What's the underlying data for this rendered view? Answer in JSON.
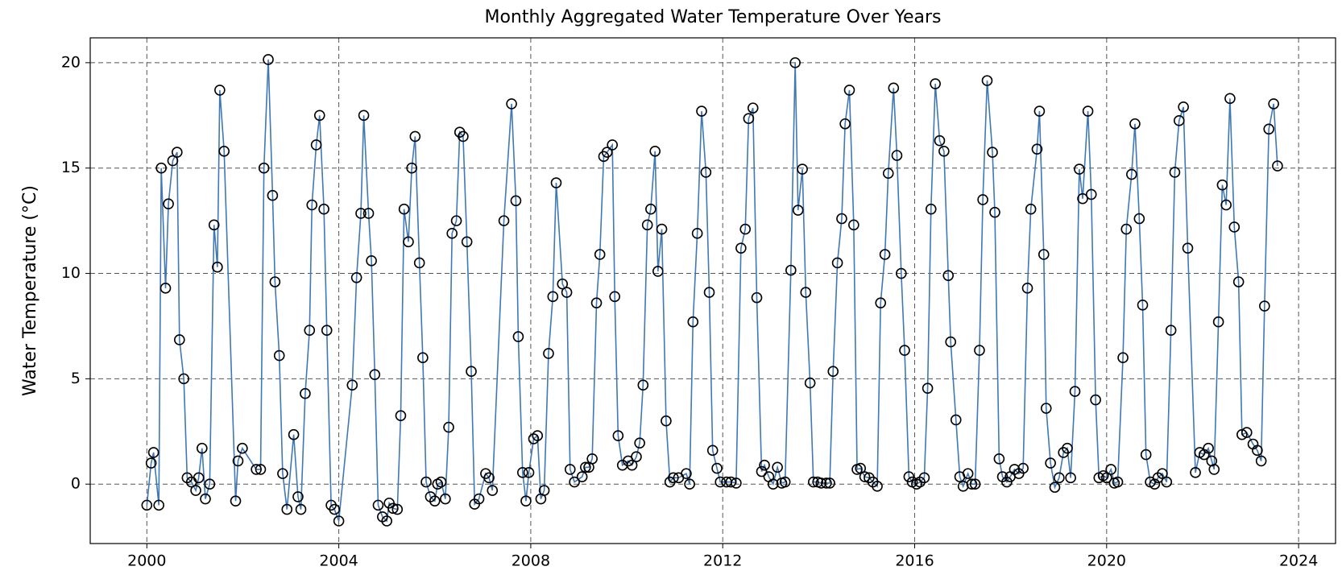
{
  "chart_data": {
    "type": "line",
    "title": "Monthly Aggregated Water Temperature Over Years",
    "y_label": "Water Temperature (°C)",
    "color": "#3f78b4",
    "marker_color": "#000000",
    "grid": true,
    "xlim": [
      1998.82,
      2024.77
    ],
    "ylim": [
      -2.82,
      21.18
    ],
    "xticks": [
      2000,
      2004,
      2008,
      2012,
      2016,
      2020,
      2024
    ],
    "yticks": [
      0,
      5,
      10,
      15,
      20
    ],
    "x": [
      2000.0,
      2000.09,
      2000.14,
      2000.25,
      2000.3,
      2000.39,
      2000.45,
      2000.54,
      2000.63,
      2000.68,
      2000.77,
      2000.84,
      2000.93,
      2001.02,
      2001.08,
      2001.15,
      2001.22,
      2001.31,
      2001.4,
      2001.47,
      2001.52,
      2001.61,
      2001.85,
      2001.9,
      2001.99,
      2002.28,
      2002.37,
      2002.44,
      2002.53,
      2002.62,
      2002.67,
      2002.76,
      2002.83,
      2002.92,
      2003.06,
      2003.15,
      2003.21,
      2003.3,
      2003.39,
      2003.44,
      2003.53,
      2003.6,
      2003.69,
      2003.75,
      2003.84,
      2003.91,
      2004.0,
      2004.28,
      2004.37,
      2004.46,
      2004.52,
      2004.62,
      2004.68,
      2004.75,
      2004.82,
      2004.91,
      2005.0,
      2005.05,
      2005.13,
      2005.22,
      2005.29,
      2005.36,
      2005.45,
      2005.52,
      2005.59,
      2005.68,
      2005.75,
      2005.82,
      2005.91,
      2006.0,
      2006.06,
      2006.13,
      2006.22,
      2006.29,
      2006.36,
      2006.45,
      2006.52,
      2006.59,
      2006.67,
      2006.76,
      2006.83,
      2006.92,
      2007.06,
      2007.13,
      2007.2,
      2007.44,
      2007.6,
      2007.69,
      2007.74,
      2007.83,
      2007.9,
      2007.96,
      2008.06,
      2008.14,
      2008.21,
      2008.28,
      2008.37,
      2008.46,
      2008.53,
      2008.66,
      2008.75,
      2008.82,
      2008.91,
      2009.07,
      2009.14,
      2009.21,
      2009.28,
      2009.37,
      2009.44,
      2009.52,
      2009.59,
      2009.7,
      2009.75,
      2009.82,
      2009.91,
      2010.03,
      2010.11,
      2010.2,
      2010.27,
      2010.34,
      2010.43,
      2010.5,
      2010.59,
      2010.65,
      2010.73,
      2010.82,
      2010.9,
      2010.97,
      2011.08,
      2011.24,
      2011.31,
      2011.38,
      2011.47,
      2011.56,
      2011.65,
      2011.72,
      2011.79,
      2011.88,
      2011.95,
      2012.08,
      2012.17,
      2012.28,
      2012.38,
      2012.47,
      2012.54,
      2012.63,
      2012.71,
      2012.81,
      2012.87,
      2012.96,
      2013.05,
      2013.14,
      2013.23,
      2013.3,
      2013.42,
      2013.51,
      2013.57,
      2013.66,
      2013.73,
      2013.82,
      2013.89,
      2013.98,
      2014.05,
      2014.16,
      2014.23,
      2014.3,
      2014.39,
      2014.48,
      2014.55,
      2014.64,
      2014.73,
      2014.8,
      2014.87,
      2014.96,
      2015.05,
      2015.13,
      2015.22,
      2015.29,
      2015.38,
      2015.45,
      2015.56,
      2015.63,
      2015.72,
      2015.79,
      2015.88,
      2015.95,
      2016.04,
      2016.11,
      2016.2,
      2016.27,
      2016.34,
      2016.43,
      2016.52,
      2016.61,
      2016.7,
      2016.75,
      2016.86,
      2016.94,
      2017.01,
      2017.11,
      2017.19,
      2017.26,
      2017.35,
      2017.42,
      2017.51,
      2017.62,
      2017.67,
      2017.76,
      2017.83,
      2017.92,
      2017.99,
      2018.08,
      2018.17,
      2018.26,
      2018.35,
      2018.42,
      2018.55,
      2018.6,
      2018.69,
      2018.74,
      2018.83,
      2018.92,
      2019.01,
      2019.1,
      2019.18,
      2019.25,
      2019.34,
      2019.43,
      2019.5,
      2019.61,
      2019.68,
      2019.77,
      2019.84,
      2019.93,
      2020.0,
      2020.09,
      2020.16,
      2020.23,
      2020.34,
      2020.41,
      2020.52,
      2020.59,
      2020.68,
      2020.75,
      2020.82,
      2020.91,
      2021.0,
      2021.07,
      2021.16,
      2021.25,
      2021.34,
      2021.42,
      2021.51,
      2021.6,
      2021.69,
      2021.85,
      2021.94,
      2022.03,
      2022.12,
      2022.19,
      2022.24,
      2022.33,
      2022.41,
      2022.49,
      2022.57,
      2022.66,
      2022.75,
      2022.82,
      2022.92,
      2023.05,
      2023.14,
      2023.22,
      2023.29,
      2023.38,
      2023.48,
      2023.56
    ],
    "values": [
      -1.0,
      1.0,
      1.5,
      -1.0,
      15.0,
      9.3,
      13.3,
      15.35,
      15.75,
      6.85,
      5.0,
      0.3,
      0.1,
      -0.3,
      0.3,
      1.7,
      -0.7,
      0.0,
      12.3,
      10.3,
      18.7,
      15.8,
      -0.8,
      1.1,
      1.7,
      0.7,
      0.7,
      15.0,
      20.15,
      13.7,
      9.6,
      6.1,
      0.5,
      -1.2,
      2.35,
      -0.6,
      -1.2,
      4.3,
      7.3,
      13.25,
      16.1,
      17.5,
      13.05,
      7.3,
      -1.0,
      -1.2,
      -1.75,
      4.7,
      9.8,
      12.85,
      17.5,
      12.85,
      10.6,
      5.2,
      -1.0,
      -1.55,
      -1.75,
      -0.9,
      -1.15,
      -1.2,
      3.25,
      13.05,
      11.5,
      15.0,
      16.5,
      10.5,
      6.0,
      0.1,
      -0.6,
      -0.8,
      0.0,
      0.1,
      -0.7,
      2.7,
      11.9,
      12.5,
      16.7,
      16.5,
      11.5,
      5.35,
      -0.95,
      -0.7,
      0.5,
      0.3,
      -0.3,
      12.5,
      18.05,
      13.45,
      7.0,
      0.55,
      -0.8,
      0.55,
      2.15,
      2.3,
      -0.7,
      -0.3,
      6.2,
      8.9,
      14.3,
      9.5,
      9.1,
      0.7,
      0.1,
      0.35,
      0.8,
      0.8,
      1.2,
      8.6,
      10.9,
      15.55,
      15.75,
      16.1,
      8.9,
      2.3,
      0.9,
      1.1,
      0.9,
      1.3,
      1.95,
      4.7,
      12.3,
      13.05,
      15.8,
      10.1,
      12.1,
      3.0,
      0.1,
      0.3,
      0.3,
      0.5,
      0.0,
      7.7,
      11.9,
      17.7,
      14.8,
      9.1,
      1.6,
      0.75,
      0.1,
      0.1,
      0.1,
      0.05,
      11.2,
      12.1,
      17.35,
      17.85,
      8.85,
      0.6,
      0.9,
      0.35,
      0.0,
      0.8,
      0.05,
      0.1,
      10.15,
      20.0,
      13.0,
      14.95,
      9.1,
      4.8,
      0.1,
      0.1,
      0.05,
      0.05,
      0.05,
      5.35,
      10.5,
      12.6,
      17.1,
      18.7,
      12.3,
      0.7,
      0.75,
      0.35,
      0.3,
      0.1,
      -0.1,
      8.6,
      10.9,
      14.75,
      18.8,
      15.6,
      10.0,
      6.35,
      0.35,
      0.1,
      0.0,
      0.1,
      0.3,
      4.55,
      13.05,
      19.0,
      16.3,
      15.8,
      9.9,
      6.75,
      3.05,
      0.35,
      -0.1,
      0.5,
      0.0,
      0.0,
      6.35,
      13.5,
      19.15,
      15.75,
      12.9,
      1.2,
      0.35,
      0.1,
      0.35,
      0.7,
      0.5,
      0.75,
      9.3,
      13.05,
      15.9,
      17.7,
      10.9,
      3.6,
      1.0,
      -0.15,
      0.3,
      1.5,
      1.7,
      0.3,
      4.4,
      14.95,
      13.55,
      17.7,
      13.75,
      4.0,
      0.3,
      0.4,
      0.3,
      0.7,
      0.05,
      0.1,
      6.0,
      12.1,
      14.7,
      17.1,
      12.6,
      8.5,
      1.4,
      0.1,
      0.0,
      0.3,
      0.5,
      0.1,
      7.3,
      14.8,
      17.25,
      17.9,
      11.2,
      0.55,
      1.5,
      1.4,
      1.7,
      1.1,
      0.7,
      7.7,
      14.2,
      13.25,
      18.3,
      12.2,
      9.6,
      2.35,
      2.45,
      1.9,
      1.6,
      1.1,
      8.45,
      16.85,
      18.05,
      15.1
    ]
  }
}
